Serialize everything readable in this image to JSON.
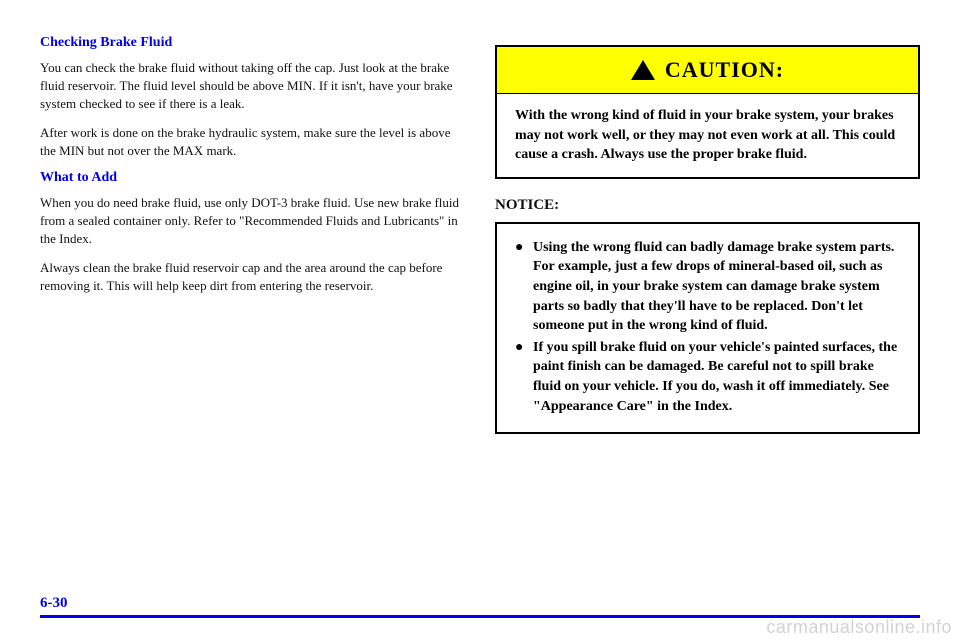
{
  "left": {
    "heading1": "Checking Brake Fluid",
    "para1": "You can check the brake fluid without taking off the cap. Just look at the brake fluid reservoir. The fluid level should be above MIN. If it isn't, have your brake system checked to see if there is a leak.",
    "para2": "After work is done on the brake hydraulic system, make sure the level is above the MIN but not over the MAX mark.",
    "heading2": "What to Add",
    "para3": "When you do need brake fluid, use only DOT-3 brake fluid. Use new brake fluid from a sealed container only. Refer to \"Recommended Fluids and Lubricants\" in the Index.",
    "para4": "Always clean the brake fluid reservoir cap and the area around the cap before removing it. This will help keep dirt from entering the reservoir."
  },
  "caution": {
    "title": "CAUTION:",
    "body": "With the wrong kind of fluid in your brake system, your brakes may not work well, or they may not even work at all. This could cause a crash. Always use the proper brake fluid."
  },
  "notice": {
    "header": "NOTICE:",
    "item1": "Using the wrong fluid can badly damage brake system parts. For example, just a few drops of mineral-based oil, such as engine oil, in your brake system can damage brake system parts so badly that they'll have to be replaced. Don't let someone put in the wrong kind of fluid.",
    "item2": "If you spill brake fluid on your vehicle's painted surfaces, the paint finish can be damaged. Be careful not to spill brake fluid on your vehicle. If you do, wash it off immediately. See \"Appearance Care\" in the Index."
  },
  "footer": {
    "page": "6-30"
  },
  "watermark": "carmanualsonline.info"
}
